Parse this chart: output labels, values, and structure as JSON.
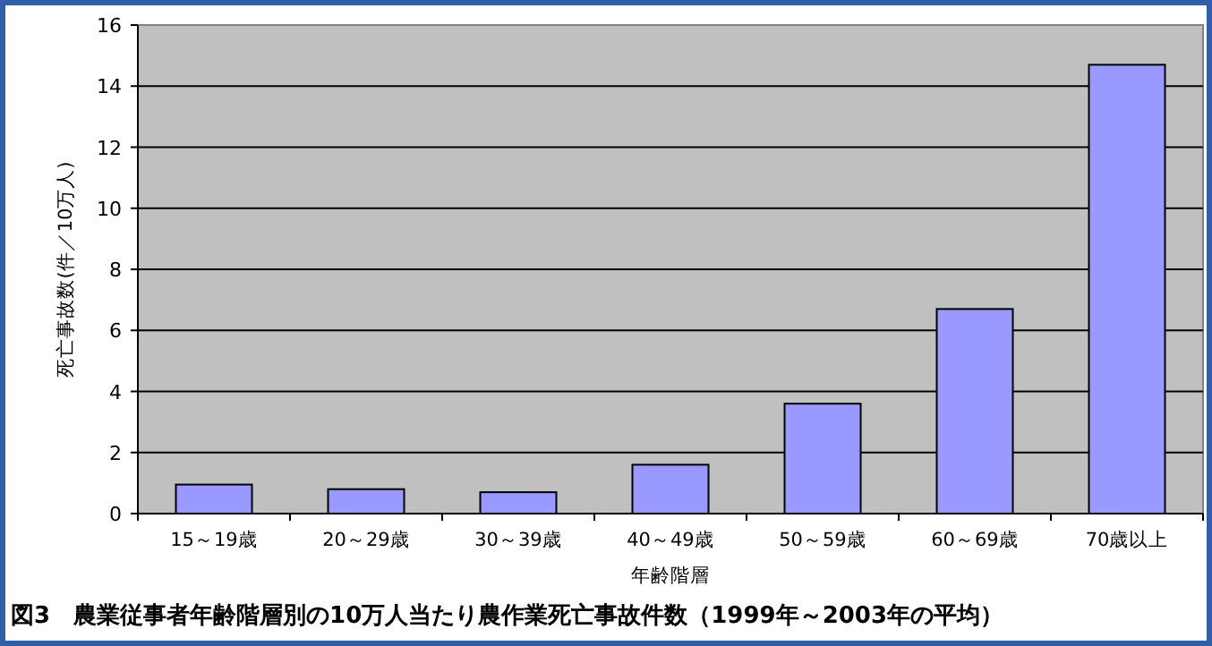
{
  "chart_data": {
    "type": "bar",
    "title": "図3　農業従事者年齢階層別の10万人当たり農作業死亡事故件数（1999年～2003年の平均）",
    "xlabel": "年齢階層",
    "ylabel": "死亡事故数(件／10万人)",
    "categories": [
      "15～19歳",
      "20～29歳",
      "30～39歳",
      "40～49歳",
      "50～59歳",
      "60～69歳",
      "70歳以上"
    ],
    "values": [
      0.95,
      0.8,
      0.7,
      1.6,
      3.6,
      6.7,
      14.7
    ],
    "color": "#9999ff",
    "ylim": [
      0,
      16
    ],
    "yticks": [
      0,
      2,
      4,
      6,
      8,
      10,
      12,
      14,
      16
    ],
    "grid": "y"
  }
}
